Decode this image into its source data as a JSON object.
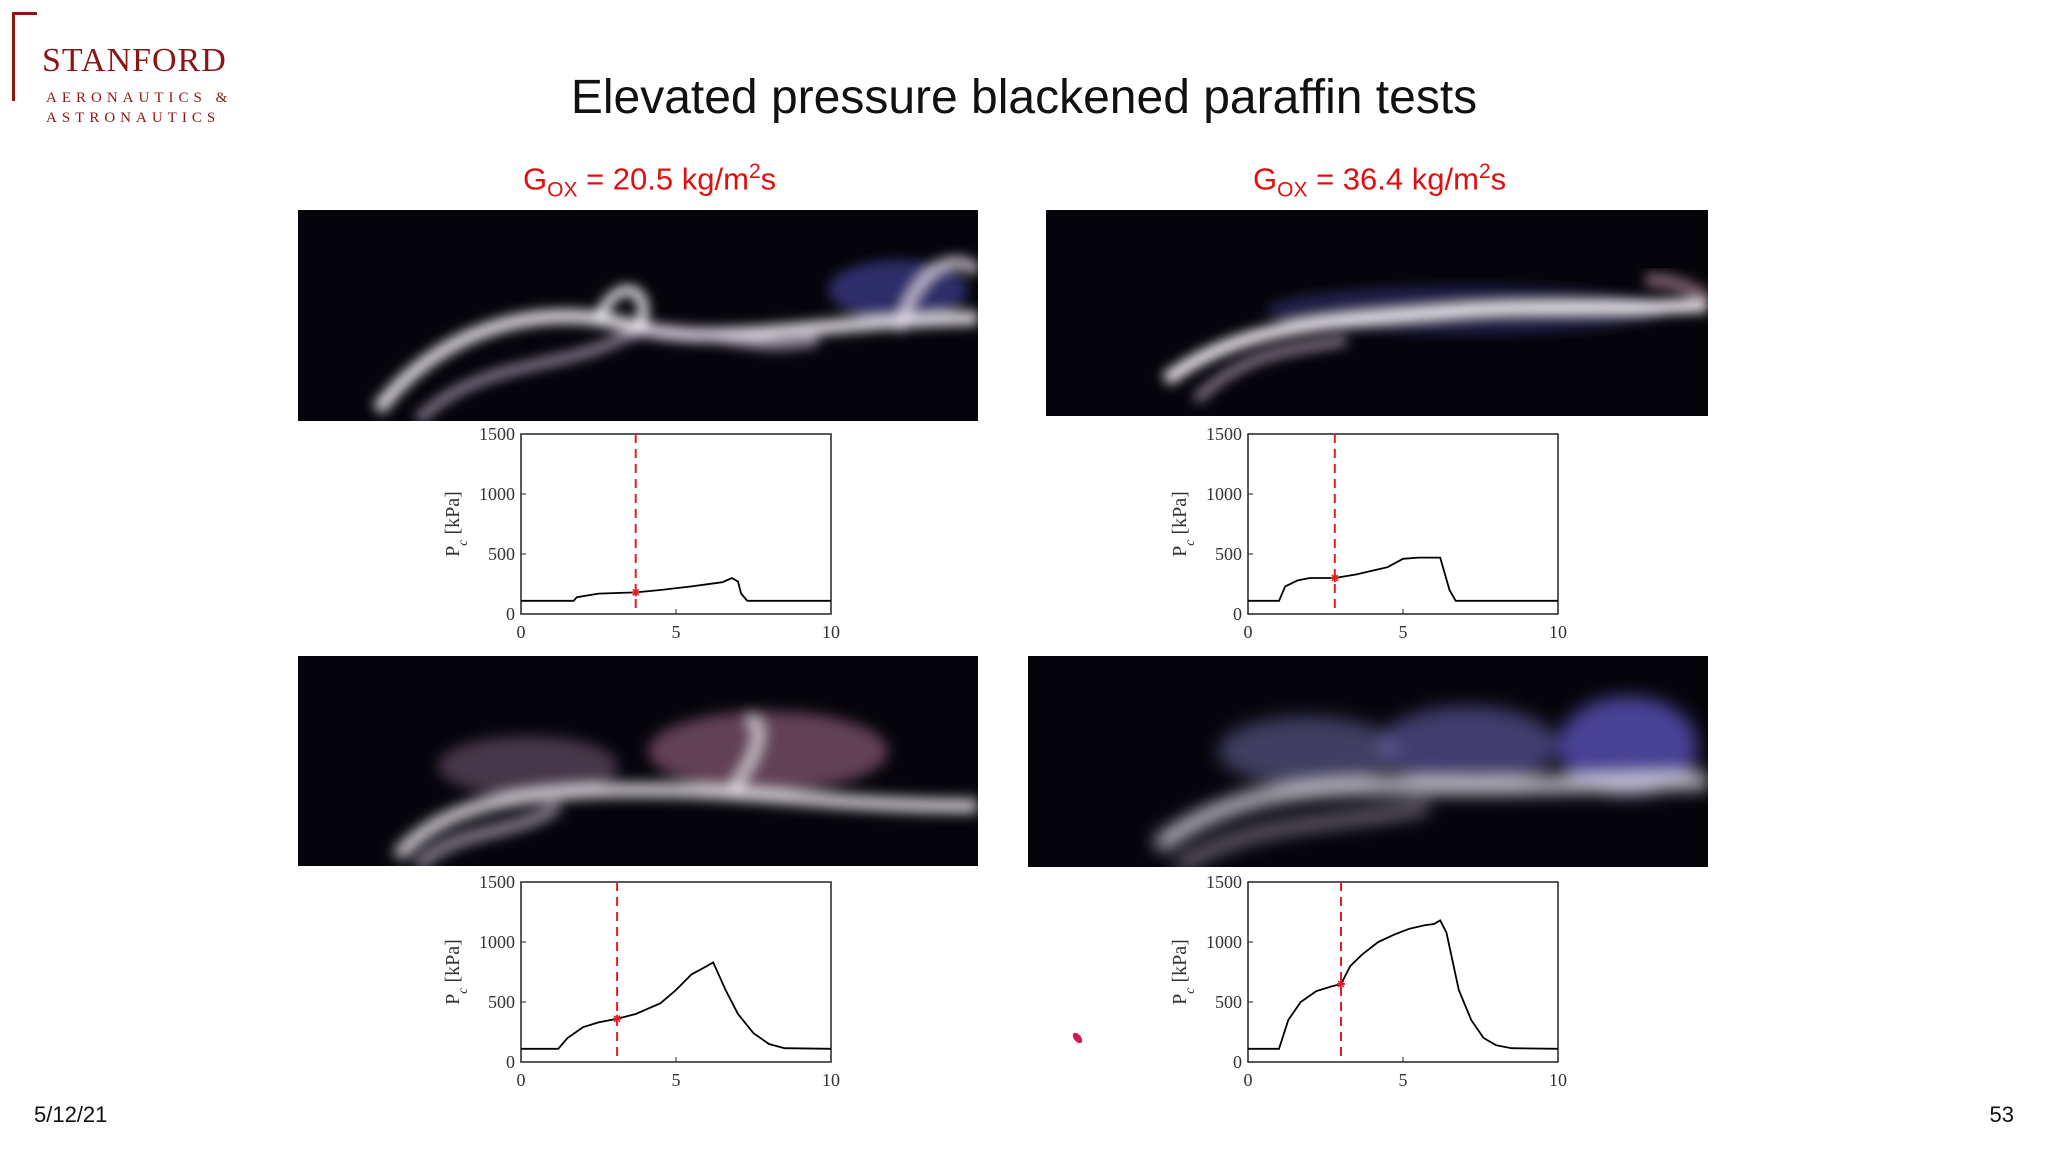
{
  "logo": {
    "name": "STANFORD",
    "line1": "AERONAUTICS &",
    "line2": "ASTRONAUTICS",
    "color": "#8c1515"
  },
  "title": "Elevated pressure blackened paraffin tests",
  "columns": [
    {
      "prefix": "G",
      "sub": "OX",
      "eq": " = 20.5 kg/m",
      "sup": "2",
      "unit": "s"
    },
    {
      "prefix": "G",
      "sub": "OX",
      "eq": " = 36.4 kg/m",
      "sup": "2",
      "unit": "s"
    }
  ],
  "footer": {
    "date": "5/12/21",
    "page": "53"
  },
  "colors": {
    "line": "#000000",
    "marker": "#e02020",
    "label_red": "#e01010"
  },
  "chart_data": [
    {
      "type": "line",
      "name": "top-left",
      "ylabel": "P_c [kPa]",
      "xlim": [
        0,
        10
      ],
      "ylim": [
        0,
        1500
      ],
      "xticks": [
        0,
        5,
        10
      ],
      "yticks": [
        0,
        500,
        1000,
        1500
      ],
      "marker_x": 3.7,
      "marker_y": 180,
      "x": [
        0,
        1.7,
        1.8,
        2.5,
        3.7,
        4.5,
        5.5,
        6.5,
        6.8,
        7.0,
        7.1,
        7.3,
        10
      ],
      "y": [
        110,
        110,
        140,
        170,
        180,
        200,
        230,
        265,
        300,
        270,
        170,
        110,
        110
      ]
    },
    {
      "type": "line",
      "name": "top-right",
      "ylabel": "P_c [kPa]",
      "xlim": [
        0,
        10
      ],
      "ylim": [
        0,
        1500
      ],
      "xticks": [
        0,
        5,
        10
      ],
      "yticks": [
        0,
        500,
        1000,
        1500
      ],
      "marker_x": 2.8,
      "marker_y": 300,
      "x": [
        0,
        1.0,
        1.2,
        1.6,
        2.0,
        2.8,
        3.5,
        4.0,
        4.5,
        5.0,
        5.5,
        6.0,
        6.2,
        6.5,
        6.7,
        10
      ],
      "y": [
        110,
        110,
        230,
        280,
        300,
        300,
        330,
        360,
        390,
        460,
        470,
        470,
        470,
        200,
        110,
        110
      ]
    },
    {
      "type": "line",
      "name": "bottom-left",
      "ylabel": "P_c [kPa]",
      "xlim": [
        0,
        10
      ],
      "ylim": [
        0,
        1500
      ],
      "xticks": [
        0,
        5,
        10
      ],
      "yticks": [
        0,
        500,
        1000,
        1500
      ],
      "marker_x": 3.1,
      "marker_y": 360,
      "x": [
        0,
        1.2,
        1.5,
        2.0,
        2.5,
        3.1,
        3.7,
        4.5,
        5.0,
        5.5,
        6.0,
        6.2,
        6.6,
        7.0,
        7.5,
        8.0,
        8.5,
        10
      ],
      "y": [
        110,
        110,
        200,
        290,
        330,
        360,
        400,
        490,
        600,
        730,
        800,
        830,
        600,
        400,
        240,
        150,
        115,
        110
      ]
    },
    {
      "type": "line",
      "name": "bottom-right",
      "ylabel": "P_c [kPa]",
      "xlim": [
        0,
        10
      ],
      "ylim": [
        0,
        1500
      ],
      "xticks": [
        0,
        5,
        10
      ],
      "yticks": [
        0,
        500,
        1000,
        1500
      ],
      "marker_x": 3.0,
      "marker_y": 650,
      "x": [
        0,
        1.0,
        1.3,
        1.7,
        2.2,
        2.7,
        3.0,
        3.3,
        3.7,
        4.2,
        4.7,
        5.2,
        5.7,
        6.0,
        6.2,
        6.4,
        6.8,
        7.2,
        7.6,
        8.0,
        8.5,
        10
      ],
      "y": [
        110,
        110,
        350,
        500,
        590,
        630,
        650,
        800,
        900,
        1000,
        1060,
        1110,
        1140,
        1150,
        1180,
        1080,
        600,
        350,
        200,
        140,
        115,
        110
      ]
    }
  ]
}
